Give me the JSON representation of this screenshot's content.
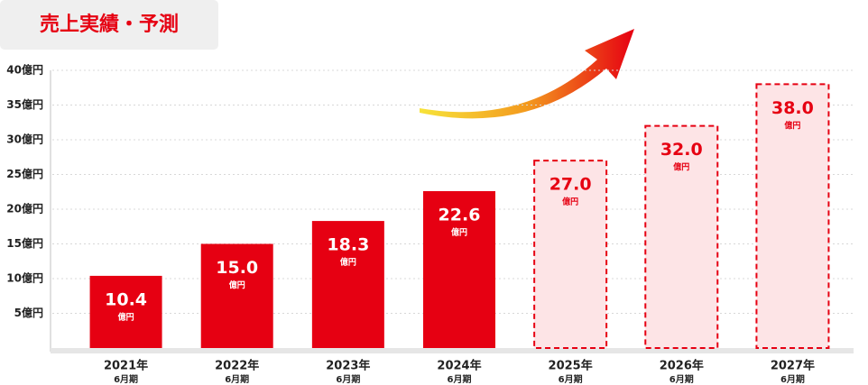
{
  "chart_data": {
    "type": "bar",
    "title": "売上実績・予測",
    "categories": [
      "2021年",
      "2022年",
      "2023年",
      "2024年",
      "2025年",
      "2026年",
      "2027年"
    ],
    "category_sublabels": [
      "6月期",
      "6月期",
      "6月期",
      "6月期",
      "6月期",
      "6月期",
      "6月期"
    ],
    "values": [
      10.4,
      15,
      18.3,
      22.6,
      27,
      32,
      38
    ],
    "value_labels": [
      "10.4",
      "15.0",
      "18.3",
      "22.6",
      "27.0",
      "32.0",
      "38.0"
    ],
    "value_unit": "億円",
    "forecast": [
      false,
      false,
      false,
      false,
      true,
      true,
      true
    ],
    "color": "#e60012",
    "forecast_fill": "#fde4e6",
    "ylim": [
      0,
      40
    ],
    "yticks": [
      {
        "value": 5,
        "label": "5億円"
      },
      {
        "value": 10,
        "label": "10億円"
      },
      {
        "value": 15,
        "label": "15億円"
      },
      {
        "value": 20,
        "label": "20億円"
      },
      {
        "value": 25,
        "label": "25億円"
      },
      {
        "value": 30,
        "label": "30億円"
      },
      {
        "value": 35,
        "label": "35億円"
      },
      {
        "value": 40,
        "label": "40億円"
      }
    ],
    "grid": true
  }
}
